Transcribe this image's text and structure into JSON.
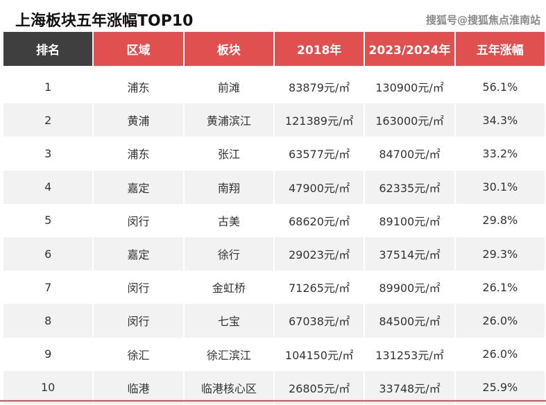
{
  "title": "上海板块五年涨幅TOP10",
  "watermark": "搜狐号@搜狐焦点淮南站",
  "colors": {
    "header_red": "#e05050",
    "header_dark": "#3f3f3f",
    "row_alt": "#f2f2f2"
  },
  "chart_data": {
    "type": "table",
    "title": "上海板块五年涨幅TOP10",
    "columns": [
      "排名",
      "区域",
      "板块",
      "2018年",
      "2023/2024年",
      "五年涨幅"
    ],
    "rows": [
      [
        "1",
        "浦东",
        "前滩",
        "83879元/㎡",
        "130900元/㎡",
        "56.1%"
      ],
      [
        "2",
        "黄浦",
        "黄浦滨江",
        "121389元/㎡",
        "163000元/㎡",
        "34.3%"
      ],
      [
        "3",
        "浦东",
        "张江",
        "63577元/㎡",
        "84700元/㎡",
        "33.2%"
      ],
      [
        "4",
        "嘉定",
        "南翔",
        "47900元/㎡",
        "62335元/㎡",
        "30.1%"
      ],
      [
        "5",
        "闵行",
        "古美",
        "68620元/㎡",
        "89100元/㎡",
        "29.8%"
      ],
      [
        "6",
        "嘉定",
        "徐行",
        "29023元/㎡",
        "37514元/㎡",
        "29.3%"
      ],
      [
        "7",
        "闵行",
        "金虹桥",
        "71265元/㎡",
        "89900元/㎡",
        "26.1%"
      ],
      [
        "8",
        "闵行",
        "七宝",
        "67038元/㎡",
        "84500元/㎡",
        "26.0%"
      ],
      [
        "9",
        "徐汇",
        "徐汇滨江",
        "104150元/㎡",
        "131253元/㎡",
        "26.0%"
      ],
      [
        "10",
        "临港",
        "临港核心区",
        "26805元/㎡",
        "33748元/㎡",
        "25.9%"
      ]
    ]
  }
}
